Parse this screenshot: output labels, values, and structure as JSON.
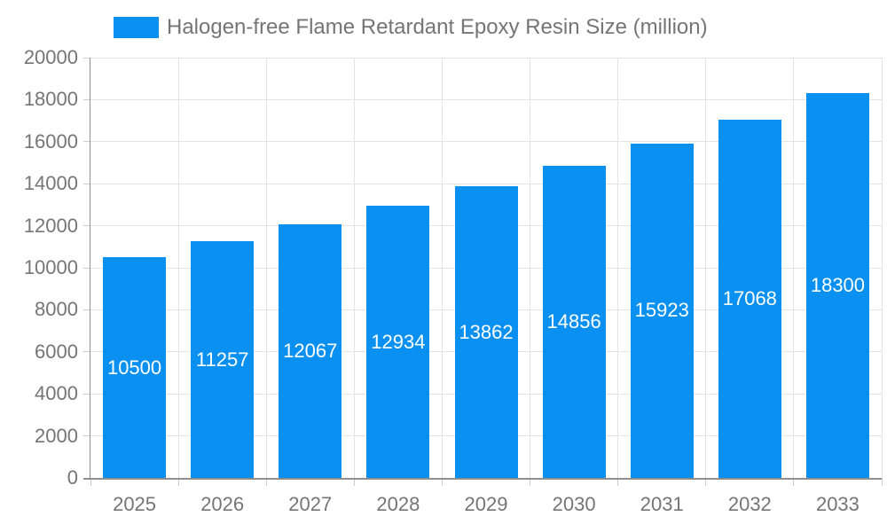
{
  "legend": {
    "label": "Halogen-free Flame Retardant Epoxy Resin Size (million)"
  },
  "chart_data": {
    "type": "bar",
    "title": "Halogen-free Flame Retardant Epoxy Resin Size (million)",
    "series_name": "Halogen-free Flame Retardant Epoxy Resin Size (million)",
    "categories": [
      "2025",
      "2026",
      "2027",
      "2028",
      "2029",
      "2030",
      "2031",
      "2032",
      "2033"
    ],
    "values": [
      10500,
      11257,
      12067,
      12934,
      13862,
      14856,
      15923,
      17068,
      18300
    ],
    "xlabel": "",
    "ylabel": "",
    "ylim": [
      0,
      20000
    ],
    "ytick_step": 2000,
    "yticks": [
      0,
      2000,
      4000,
      6000,
      8000,
      10000,
      12000,
      14000,
      16000,
      18000,
      20000
    ],
    "grid": true,
    "legend_position": "top",
    "bar_label_position": "inside-center",
    "colors": {
      "bar": "#0a90f1",
      "bar_label": "#ffffff",
      "axis_line": "#8f8f8f",
      "grid_line": "#e3e3e3",
      "tick": "#cccccc",
      "text": "#757575",
      "background": "#ffffff"
    }
  }
}
